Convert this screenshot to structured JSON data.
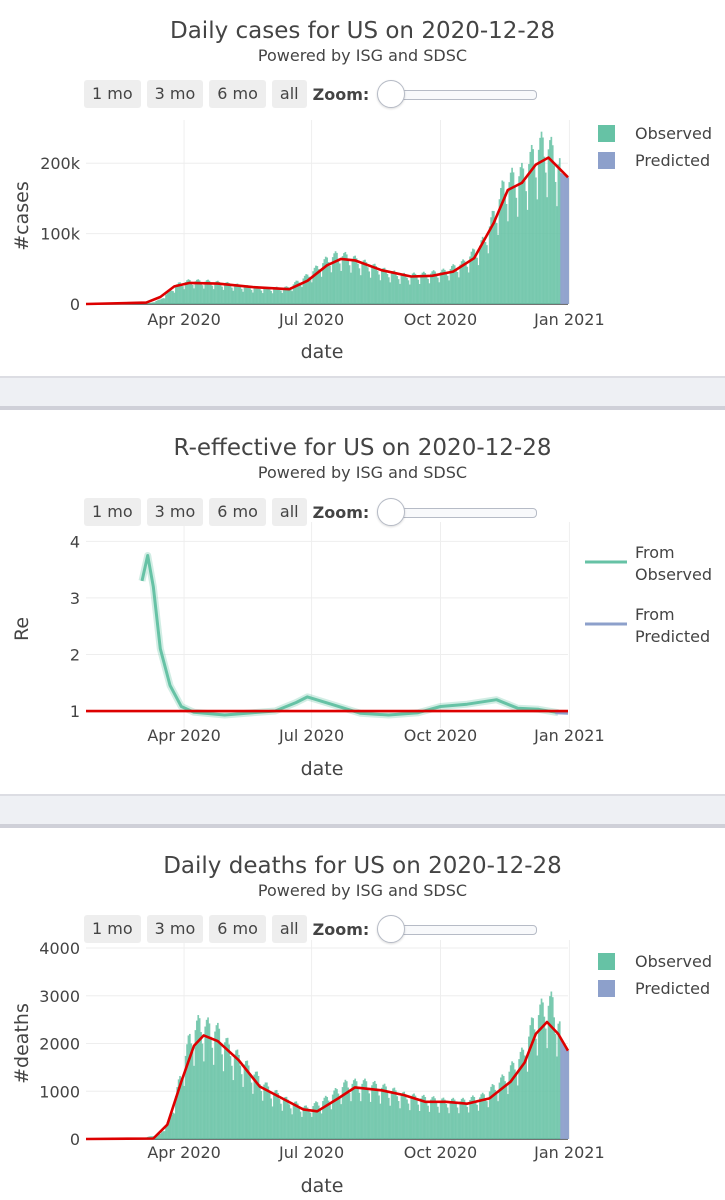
{
  "controls": {
    "buttons": [
      "1 mo",
      "3 mo",
      "6 mo",
      "all"
    ],
    "zoom_label": "Zoom:"
  },
  "colors": {
    "observed": "#66c2a5",
    "predicted": "#8da0cb",
    "fit": "#dd0000",
    "grid": "#eeeeee"
  },
  "chart_data": [
    {
      "type": "bar",
      "title": "Daily cases for US on 2020-12-28",
      "subtitle": "Powered by ISG and SDSC",
      "xlabel": "date",
      "ylabel": "#cases",
      "x_ticks": [
        "Apr 2020",
        "Jul 2020",
        "Oct 2020",
        "Jan 2021"
      ],
      "y_ticks": [
        {
          "label": "0",
          "value": 0
        },
        {
          "label": "100k",
          "value": 100000
        },
        {
          "label": "200k",
          "value": 200000
        }
      ],
      "xlim": [
        "2020-01-22",
        "2020-12-31"
      ],
      "ylim": [
        0,
        250000
      ],
      "legend": [
        "Observed",
        "Predicted"
      ],
      "legend_position": "top-right",
      "observed_weekly": [
        {
          "date": "2020-01-22",
          "value": 0
        },
        {
          "date": "2020-02-01",
          "value": 10
        },
        {
          "date": "2020-02-15",
          "value": 20
        },
        {
          "date": "2020-03-01",
          "value": 200
        },
        {
          "date": "2020-03-08",
          "value": 1500
        },
        {
          "date": "2020-03-15",
          "value": 6000
        },
        {
          "date": "2020-03-22",
          "value": 18000
        },
        {
          "date": "2020-03-29",
          "value": 28000
        },
        {
          "date": "2020-04-05",
          "value": 31000
        },
        {
          "date": "2020-04-19",
          "value": 30000
        },
        {
          "date": "2020-05-03",
          "value": 27000
        },
        {
          "date": "2020-05-17",
          "value": 23000
        },
        {
          "date": "2020-05-31",
          "value": 21000
        },
        {
          "date": "2020-06-14",
          "value": 22000
        },
        {
          "date": "2020-06-28",
          "value": 38000
        },
        {
          "date": "2020-07-12",
          "value": 60000
        },
        {
          "date": "2020-07-19",
          "value": 66000
        },
        {
          "date": "2020-07-26",
          "value": 64000
        },
        {
          "date": "2020-08-09",
          "value": 54000
        },
        {
          "date": "2020-08-23",
          "value": 44000
        },
        {
          "date": "2020-09-06",
          "value": 38000
        },
        {
          "date": "2020-09-20",
          "value": 40000
        },
        {
          "date": "2020-10-04",
          "value": 44000
        },
        {
          "date": "2020-10-18",
          "value": 56000
        },
        {
          "date": "2020-11-01",
          "value": 85000
        },
        {
          "date": "2020-11-08",
          "value": 120000
        },
        {
          "date": "2020-11-15",
          "value": 158000
        },
        {
          "date": "2020-11-22",
          "value": 170000
        },
        {
          "date": "2020-11-29",
          "value": 175000
        },
        {
          "date": "2020-12-06",
          "value": 200000
        },
        {
          "date": "2020-12-13",
          "value": 215000
        },
        {
          "date": "2020-12-20",
          "value": 205000
        },
        {
          "date": "2020-12-25",
          "value": 185000
        }
      ],
      "predicted": [
        {
          "date": "2020-12-26",
          "value": 186000
        },
        {
          "date": "2020-12-31",
          "value": 180000
        }
      ],
      "fit_line": [
        {
          "date": "2020-01-22",
          "value": 0
        },
        {
          "date": "2020-03-05",
          "value": 2000
        },
        {
          "date": "2020-03-15",
          "value": 10000
        },
        {
          "date": "2020-03-25",
          "value": 25000
        },
        {
          "date": "2020-04-05",
          "value": 30000
        },
        {
          "date": "2020-04-25",
          "value": 29000
        },
        {
          "date": "2020-05-20",
          "value": 24000
        },
        {
          "date": "2020-06-15",
          "value": 21000
        },
        {
          "date": "2020-06-28",
          "value": 33000
        },
        {
          "date": "2020-07-12",
          "value": 55000
        },
        {
          "date": "2020-07-22",
          "value": 64000
        },
        {
          "date": "2020-08-01",
          "value": 62000
        },
        {
          "date": "2020-08-20",
          "value": 48000
        },
        {
          "date": "2020-09-10",
          "value": 39000
        },
        {
          "date": "2020-09-25",
          "value": 40000
        },
        {
          "date": "2020-10-10",
          "value": 46000
        },
        {
          "date": "2020-10-25",
          "value": 65000
        },
        {
          "date": "2020-11-08",
          "value": 115000
        },
        {
          "date": "2020-11-18",
          "value": 162000
        },
        {
          "date": "2020-11-28",
          "value": 172000
        },
        {
          "date": "2020-12-08",
          "value": 198000
        },
        {
          "date": "2020-12-17",
          "value": 208000
        },
        {
          "date": "2020-12-25",
          "value": 192000
        },
        {
          "date": "2020-12-31",
          "value": 180000
        }
      ]
    },
    {
      "type": "line",
      "title": "R-effective for US on 2020-12-28",
      "subtitle": "Powered by ISG and SDSC",
      "xlabel": "date",
      "ylabel": "Re",
      "x_ticks": [
        "Apr 2020",
        "Jul 2020",
        "Oct 2020",
        "Jan 2021"
      ],
      "y_ticks": [
        {
          "label": "1",
          "value": 1
        },
        {
          "label": "2",
          "value": 2
        },
        {
          "label": "3",
          "value": 3
        },
        {
          "label": "4",
          "value": 4
        }
      ],
      "xlim": [
        "2020-01-22",
        "2020-12-31"
      ],
      "ylim": [
        0.7,
        4.2
      ],
      "legend": [
        "From Observed",
        "From Predicted"
      ],
      "legend_position": "top-right",
      "reference_line": 1,
      "from_observed": [
        {
          "date": "2020-03-02",
          "value": 3.3
        },
        {
          "date": "2020-03-06",
          "value": 3.75
        },
        {
          "date": "2020-03-10",
          "value": 3.2
        },
        {
          "date": "2020-03-15",
          "value": 2.1
        },
        {
          "date": "2020-03-22",
          "value": 1.45
        },
        {
          "date": "2020-03-30",
          "value": 1.08
        },
        {
          "date": "2020-04-08",
          "value": 0.98
        },
        {
          "date": "2020-04-30",
          "value": 0.93
        },
        {
          "date": "2020-05-20",
          "value": 0.97
        },
        {
          "date": "2020-06-05",
          "value": 1.0
        },
        {
          "date": "2020-06-20",
          "value": 1.15
        },
        {
          "date": "2020-06-28",
          "value": 1.25
        },
        {
          "date": "2020-07-15",
          "value": 1.12
        },
        {
          "date": "2020-08-05",
          "value": 0.96
        },
        {
          "date": "2020-08-25",
          "value": 0.93
        },
        {
          "date": "2020-09-15",
          "value": 0.97
        },
        {
          "date": "2020-10-01",
          "value": 1.08
        },
        {
          "date": "2020-10-20",
          "value": 1.12
        },
        {
          "date": "2020-11-10",
          "value": 1.2
        },
        {
          "date": "2020-11-25",
          "value": 1.05
        },
        {
          "date": "2020-12-10",
          "value": 1.03
        },
        {
          "date": "2020-12-24",
          "value": 0.97
        }
      ],
      "from_predicted": [
        {
          "date": "2020-12-22",
          "value": 0.97
        },
        {
          "date": "2020-12-31",
          "value": 0.96
        }
      ]
    },
    {
      "type": "bar",
      "title": "Daily deaths for US on 2020-12-28",
      "subtitle": "Powered by ISG and SDSC",
      "xlabel": "date",
      "ylabel": "#deaths",
      "x_ticks": [
        "Apr 2020",
        "Jul 2020",
        "Oct 2020",
        "Jan 2021"
      ],
      "y_ticks": [
        {
          "label": "0",
          "value": 0
        },
        {
          "label": "1000",
          "value": 1000
        },
        {
          "label": "2000",
          "value": 2000
        },
        {
          "label": "3000",
          "value": 3000
        },
        {
          "label": "4000",
          "value": 4000
        }
      ],
      "xlim": [
        "2020-01-22",
        "2020-12-31"
      ],
      "ylim": [
        0,
        4000
      ],
      "legend": [
        "Observed",
        "Predicted"
      ],
      "legend_position": "top-right",
      "observed_weekly": [
        {
          "date": "2020-01-22",
          "value": 0
        },
        {
          "date": "2020-03-01",
          "value": 5
        },
        {
          "date": "2020-03-15",
          "value": 100
        },
        {
          "date": "2020-03-22",
          "value": 400
        },
        {
          "date": "2020-03-29",
          "value": 1200
        },
        {
          "date": "2020-04-05",
          "value": 2000
        },
        {
          "date": "2020-04-12",
          "value": 2300
        },
        {
          "date": "2020-04-19",
          "value": 2200
        },
        {
          "date": "2020-04-26",
          "value": 2100
        },
        {
          "date": "2020-05-03",
          "value": 1800
        },
        {
          "date": "2020-05-17",
          "value": 1400
        },
        {
          "date": "2020-05-31",
          "value": 1000
        },
        {
          "date": "2020-06-14",
          "value": 750
        },
        {
          "date": "2020-06-28",
          "value": 600
        },
        {
          "date": "2020-07-12",
          "value": 800
        },
        {
          "date": "2020-07-26",
          "value": 1100
        },
        {
          "date": "2020-08-09",
          "value": 1100
        },
        {
          "date": "2020-08-23",
          "value": 1000
        },
        {
          "date": "2020-09-06",
          "value": 850
        },
        {
          "date": "2020-09-20",
          "value": 800
        },
        {
          "date": "2020-10-04",
          "value": 750
        },
        {
          "date": "2020-10-18",
          "value": 750
        },
        {
          "date": "2020-11-01",
          "value": 850
        },
        {
          "date": "2020-11-15",
          "value": 1200
        },
        {
          "date": "2020-11-29",
          "value": 1700
        },
        {
          "date": "2020-12-06",
          "value": 2300
        },
        {
          "date": "2020-12-13",
          "value": 2600
        },
        {
          "date": "2020-12-20",
          "value": 2700
        },
        {
          "date": "2020-12-25",
          "value": 2200
        }
      ],
      "predicted": [
        {
          "date": "2020-12-26",
          "value": 2100
        },
        {
          "date": "2020-12-31",
          "value": 1850
        }
      ],
      "fit_line": [
        {
          "date": "2020-01-22",
          "value": 0
        },
        {
          "date": "2020-03-10",
          "value": 10
        },
        {
          "date": "2020-03-20",
          "value": 300
        },
        {
          "date": "2020-03-30",
          "value": 1200
        },
        {
          "date": "2020-04-08",
          "value": 1950
        },
        {
          "date": "2020-04-15",
          "value": 2170
        },
        {
          "date": "2020-04-25",
          "value": 2050
        },
        {
          "date": "2020-05-10",
          "value": 1650
        },
        {
          "date": "2020-05-25",
          "value": 1100
        },
        {
          "date": "2020-06-10",
          "value": 850
        },
        {
          "date": "2020-06-25",
          "value": 620
        },
        {
          "date": "2020-07-05",
          "value": 580
        },
        {
          "date": "2020-07-20",
          "value": 850
        },
        {
          "date": "2020-08-01",
          "value": 1080
        },
        {
          "date": "2020-08-20",
          "value": 1020
        },
        {
          "date": "2020-09-05",
          "value": 920
        },
        {
          "date": "2020-09-20",
          "value": 780
        },
        {
          "date": "2020-10-05",
          "value": 780
        },
        {
          "date": "2020-10-20",
          "value": 740
        },
        {
          "date": "2020-11-05",
          "value": 850
        },
        {
          "date": "2020-11-20",
          "value": 1200
        },
        {
          "date": "2020-11-30",
          "value": 1600
        },
        {
          "date": "2020-12-08",
          "value": 2200
        },
        {
          "date": "2020-12-16",
          "value": 2450
        },
        {
          "date": "2020-12-24",
          "value": 2200
        },
        {
          "date": "2020-12-31",
          "value": 1850
        }
      ]
    }
  ]
}
